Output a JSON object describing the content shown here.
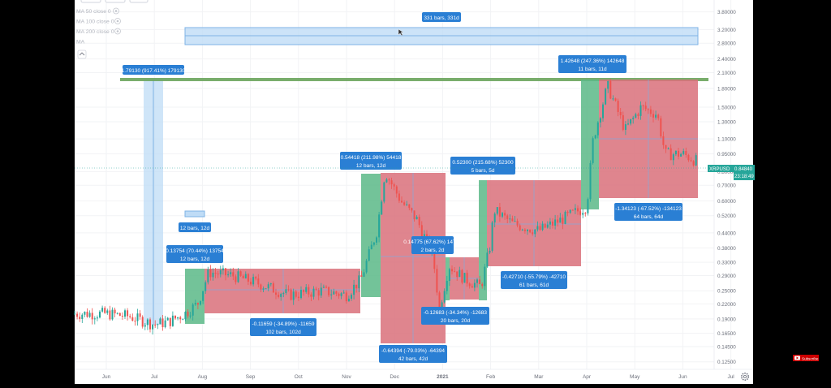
{
  "indicators": [
    {
      "label": "MA 50 close 0"
    },
    {
      "label": "MA 100 close 0"
    },
    {
      "label": "MA 200 close 0"
    },
    {
      "label": "MA"
    }
  ],
  "subscribe_label": "Subscribe",
  "colors": {
    "up": "#26a69a",
    "down": "#ef5350",
    "gain_box": "#5bb887",
    "loss_box": "#d9707a",
    "range_box": "#bfdcf6",
    "label_bg": "#2a7fd4",
    "top_line": "#6aa45c"
  },
  "chart_data": {
    "type": "candlestick",
    "symbol_tag": "XRPUSD",
    "last_price": "0.84840",
    "countdown": "23:18:49",
    "y_ticks": [
      "3.80000",
      "3.20000",
      "2.80000",
      "2.40000",
      "2.10000",
      "1.80000",
      "1.50000",
      "1.30000",
      "1.10000",
      "0.95000",
      "0.80000",
      "0.70000",
      "0.60000",
      "0.52000",
      "0.44000",
      "0.38000",
      "0.33000",
      "0.29000",
      "0.25000",
      "0.22000",
      "0.19000",
      "0.16500",
      "0.14500",
      "0.12500"
    ],
    "x_ticks": [
      "Jun",
      "Jul",
      "Aug",
      "Sep",
      "Oct",
      "Nov",
      "Dec",
      "2021",
      "Feb",
      "Mar",
      "Apr",
      "May",
      "Jun",
      "Jul"
    ],
    "price_path": [
      [
        "Jun 1",
        0.2
      ],
      [
        "Jun 15",
        0.195
      ],
      [
        "Jul 1",
        0.18
      ],
      [
        "Jul 10",
        0.185
      ],
      [
        "Jul 20",
        0.2
      ],
      [
        "Jul 28",
        0.22
      ],
      [
        "Aug 5",
        0.3
      ],
      [
        "Aug 20",
        0.29
      ],
      [
        "Sep 5",
        0.27
      ],
      [
        "Sep 25",
        0.24
      ],
      [
        "Oct 15",
        0.25
      ],
      [
        "Nov 1",
        0.24
      ],
      [
        "Nov 10",
        0.28
      ],
      [
        "Nov 20",
        0.45
      ],
      [
        "Nov 25",
        0.8
      ],
      [
        "Dec 5",
        0.6
      ],
      [
        "Dec 15",
        0.5
      ],
      [
        "Dec 25",
        0.35
      ],
      [
        "Dec 29",
        0.21
      ],
      [
        "Jan 5",
        0.32
      ],
      [
        "Jan 15",
        0.28
      ],
      [
        "Jan 25",
        0.26
      ],
      [
        "Feb 1",
        0.4
      ],
      [
        "Feb 3",
        0.55
      ],
      [
        "Feb 15",
        0.48
      ],
      [
        "Mar 1",
        0.45
      ],
      [
        "Mar 15",
        0.5
      ],
      [
        "Apr 1",
        0.57
      ],
      [
        "Apr 5",
        1.1
      ],
      [
        "Apr 14",
        1.85
      ],
      [
        "Apr 25",
        1.2
      ],
      [
        "May 5",
        1.5
      ],
      [
        "May 15",
        1.4
      ],
      [
        "May 20",
        0.95
      ],
      [
        "Jun 1",
        0.95
      ],
      [
        "Jun 15",
        0.85
      ]
    ],
    "measurements": [
      {
        "label": "331 bars, 331d"
      },
      {
        "label": "1.79130 (917.41%) 179130"
      },
      {
        "label": "1.42648 (247.36%) 142648",
        "sub": "11 bars, 11d"
      },
      {
        "label": "12 bars, 12d"
      },
      {
        "label": "0.13754 (70.44%) 13754",
        "sub": "12 bars, 12d"
      },
      {
        "label": "-0.11659 (-34.89%) -11659",
        "sub": "102 bars, 102d"
      },
      {
        "label": "0.54418 (211.98%) 54418",
        "sub": "12 bars, 12d"
      },
      {
        "label": "-0.64394 (-79.03%) -64394",
        "sub": "42 bars, 42d"
      },
      {
        "label": "0.14775 (67.62%) 14775",
        "sub": "2 bars, 2d"
      },
      {
        "label": "-0.12683 (-34.34%) -12683",
        "sub": "20 bars, 20d"
      },
      {
        "label": "0.52300 (215.68%) 52300",
        "sub": "5 bars, 5d"
      },
      {
        "label": "-0.42710 (-55.79%) -42710",
        "sub": "61 bars, 61d"
      },
      {
        "label": "-1.34123 (-67.52%) -134123",
        "sub": "64 bars, 64d"
      }
    ]
  }
}
